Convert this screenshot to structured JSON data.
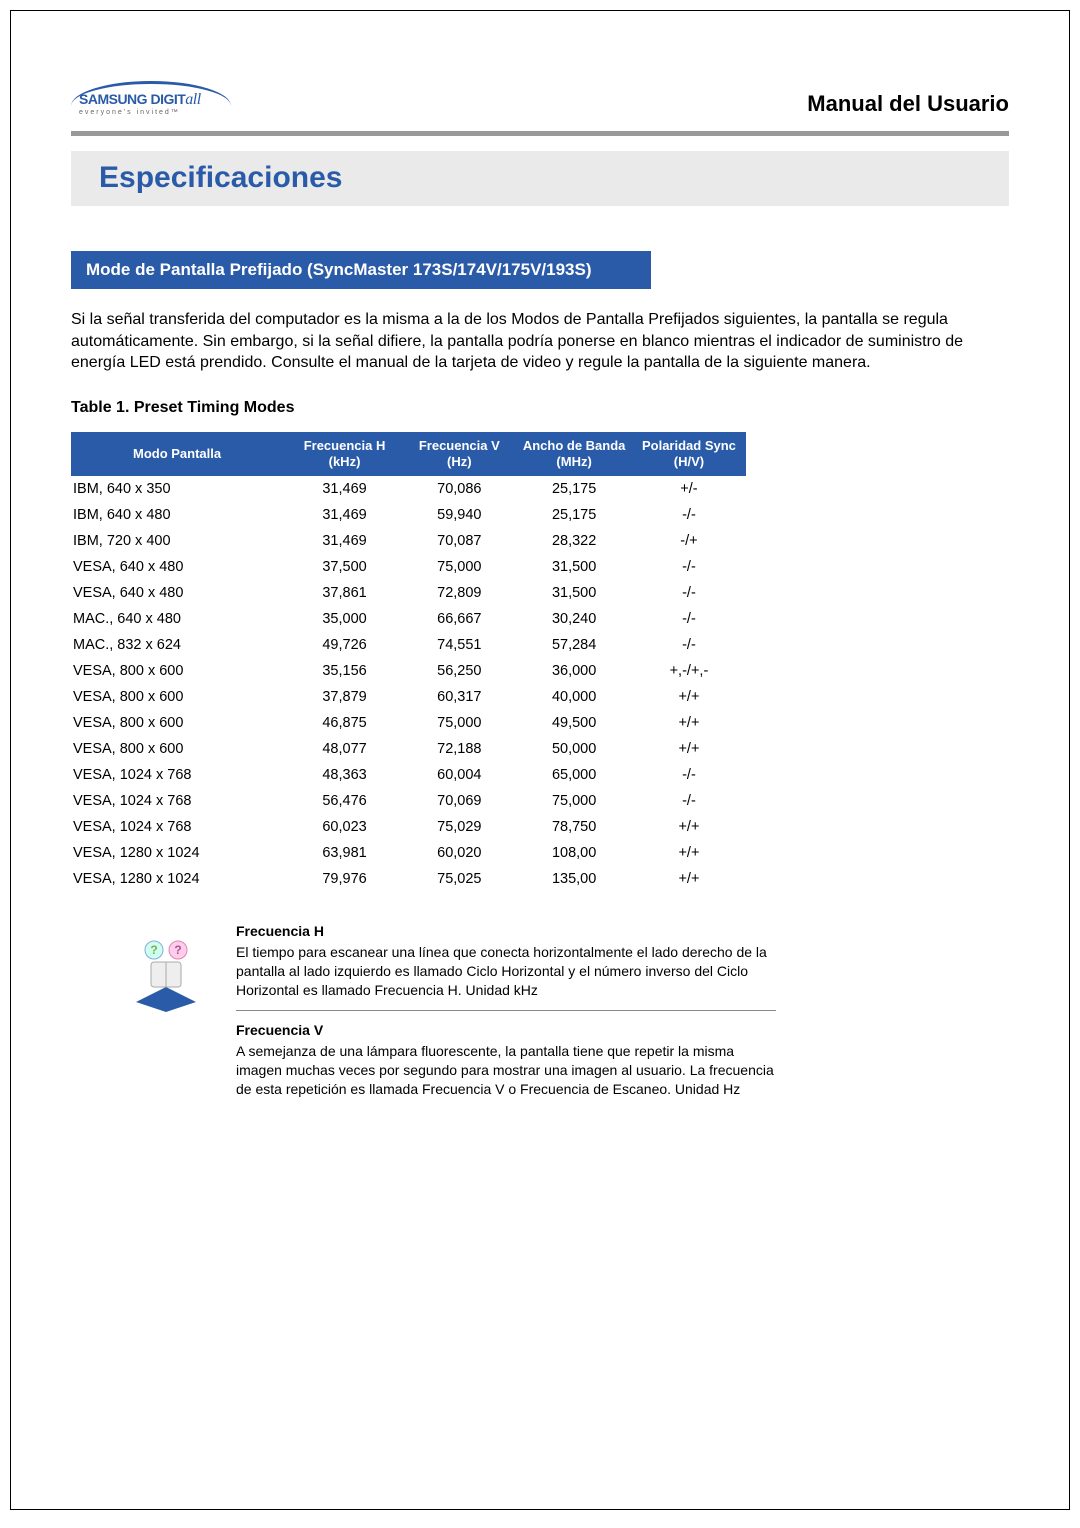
{
  "header": {
    "logo_main": "SAMSUNG",
    "logo_digit": "DIGIT",
    "logo_all": "all",
    "logo_tagline": "everyone's invited™",
    "manual_title": "Manual del Usuario"
  },
  "section": {
    "title": "Especificaciones",
    "subtitle": "Mode de Pantalla Prefijado (SyncMaster 173S/174V/175V/193S)",
    "intro": "Si la señal transferida del computador es la misma a la de los Modos de Pantalla Prefijados siguientes, la pantalla se regula automáticamente. Sin embargo, si la señal difiere, la pantalla podría ponerse en blanco mientras el indicador de suministro de energía LED está prendido. Consulte el manual de la tarjeta de video y regule la pantalla de la siguiente manera."
  },
  "table": {
    "caption": "Table 1. Preset Timing Modes",
    "columns": [
      "Modo Pantalla",
      "Frecuencia H (kHz)",
      "Frecuencia V (Hz)",
      "Ancho de Banda (MHz)",
      "Polaridad Sync (H/V)"
    ],
    "header_bg": "#2a5ba8",
    "header_fg": "#ffffff",
    "rows": [
      [
        "IBM, 640 x 350",
        "31,469",
        "70,086",
        "25,175",
        "+/-"
      ],
      [
        "IBM, 640 x 480",
        "31,469",
        "59,940",
        "25,175",
        "-/-"
      ],
      [
        "IBM, 720 x 400",
        "31,469",
        "70,087",
        "28,322",
        "-/+"
      ],
      [
        "VESA, 640 x 480",
        "37,500",
        "75,000",
        "31,500",
        "-/-"
      ],
      [
        "VESA, 640 x 480",
        "37,861",
        "72,809",
        "31,500",
        "-/-"
      ],
      [
        "MAC., 640 x 480",
        "35,000",
        "66,667",
        "30,240",
        "-/-"
      ],
      [
        "MAC., 832 x 624",
        "49,726",
        "74,551",
        "57,284",
        "-/-"
      ],
      [
        "VESA, 800 x 600",
        "35,156",
        "56,250",
        "36,000",
        "+,-/+,-"
      ],
      [
        "VESA, 800 x 600",
        "37,879",
        "60,317",
        "40,000",
        "+/+"
      ],
      [
        "VESA, 800 x 600",
        "46,875",
        "75,000",
        "49,500",
        "+/+"
      ],
      [
        "VESA, 800 x 600",
        "48,077",
        "72,188",
        "50,000",
        "+/+"
      ],
      [
        "VESA, 1024 x 768",
        "48,363",
        "60,004",
        "65,000",
        "-/-"
      ],
      [
        "VESA, 1024 x 768",
        "56,476",
        "70,069",
        "75,000",
        "-/-"
      ],
      [
        "VESA, 1024 x 768",
        "60,023",
        "75,029",
        "78,750",
        "+/+"
      ],
      [
        "VESA, 1280 x 1024",
        "63,981",
        "60,020",
        "108,00",
        "+/+"
      ],
      [
        "VESA, 1280 x 1024",
        "79,976",
        "75,025",
        "135,00",
        "+/+"
      ]
    ]
  },
  "definitions": {
    "freq_h_title": "Frecuencia H",
    "freq_h_text": "El tiempo para escanear una línea que conecta horizontalmente el lado derecho de la pantalla al lado izquierdo es llamado Ciclo Horizontal y el número inverso del Ciclo Horizontal es llamado Frecuencia H. Unidad kHz",
    "freq_v_title": "Frecuencia V",
    "freq_v_text": "A semejanza de una lámpara fluorescente, la pantalla tiene que repetir la misma imagen muchas veces por segundo para mostrar una imagen al usuario. La frecuencia de esta repetición es llamada Frecuencia V o Frecuencia de Escaneo. Unidad Hz"
  },
  "colors": {
    "brand_blue": "#2a5ba8",
    "section_bg": "#eaeaea",
    "divider": "#999999",
    "text": "#000000"
  }
}
